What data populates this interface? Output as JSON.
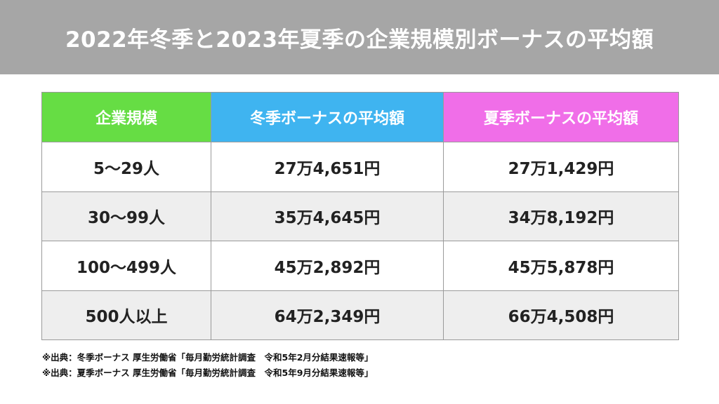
{
  "title": "2022年冬季と2023年夏季の企業規模別ボーナスの平均額",
  "colors": {
    "title_bar": "#a6a6a6",
    "header_company_size": "#66dd44",
    "header_winter": "#3fb4f0",
    "header_summer": "#f06ee8",
    "row_alt": "#eeeeee"
  },
  "table": {
    "headers": [
      "企業規模",
      "冬季ボーナスの平均額",
      "夏季ボーナスの平均額"
    ],
    "rows": [
      {
        "size": "5〜29人",
        "winter": "27万4,651円",
        "summer": "27万1,429円"
      },
      {
        "size": "30〜99人",
        "winter": "35万4,645円",
        "summer": "34万8,192円"
      },
      {
        "size": "100〜499人",
        "winter": "45万2,892円",
        "summer": "45万5,878円"
      },
      {
        "size": "500人以上",
        "winter": "64万2,349円",
        "summer": "66万4,508円"
      }
    ]
  },
  "footnotes": [
    "※出典：冬季ボーナス 厚生労働省「毎月勤労統計調査　令和5年2月分結果速報等」",
    "※出典：夏季ボーナス 厚生労働省「毎月勤労統計調査　令和5年9月分結果速報等」"
  ]
}
